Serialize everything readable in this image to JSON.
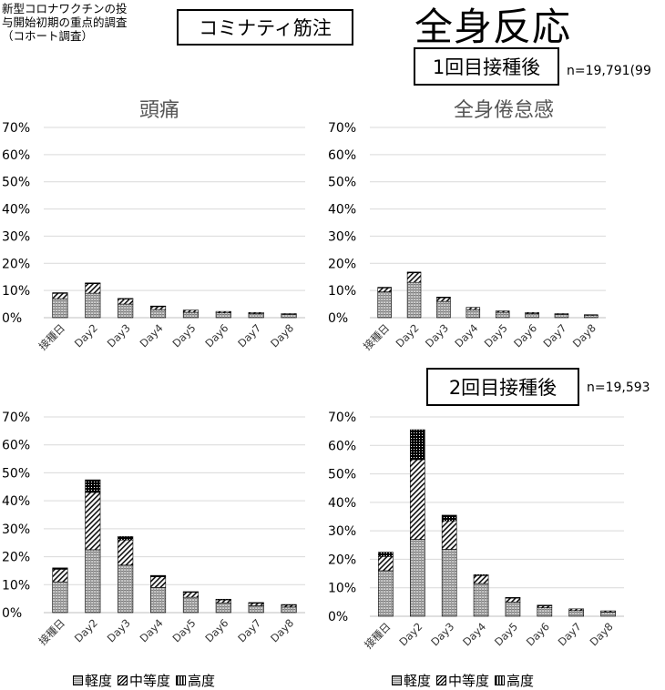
{
  "header": {
    "source_note": "新型コロナワクチンの投\n与開始初期の重点的調査\n（コホート調査）",
    "community_label": "コミナティ筋注",
    "main_title": "全身反応",
    "dose1_label": "1回目接種後",
    "dose1_n": "n=19,791(99",
    "dose2_label": "2回目接種後",
    "dose2_n": "n=19,593"
  },
  "legend": {
    "light": "軽度",
    "moderate": "中等度",
    "severe": "高度"
  },
  "colors": {
    "light": "#8c8c8c",
    "moderate": "#000000",
    "severe": "#000000",
    "grid": "#d9d9d9",
    "text": "#333333"
  },
  "chart_data": [
    {
      "type": "bar",
      "stacked": true,
      "title": "頭痛",
      "dose": "1回目接種後",
      "categories": [
        "接種日",
        "Day2",
        "Day3",
        "Day4",
        "Day5",
        "Day6",
        "Day7",
        "Day8"
      ],
      "series": [
        {
          "name": "軽度",
          "values": [
            7.0,
            9.0,
            5.0,
            3.0,
            2.0,
            1.8,
            1.5,
            1.2
          ]
        },
        {
          "name": "中等度",
          "values": [
            2.0,
            3.5,
            2.0,
            1.2,
            0.8,
            0.5,
            0.4,
            0.3
          ]
        },
        {
          "name": "高度",
          "values": [
            0.2,
            0.3,
            0.1,
            0.1,
            0.0,
            0.0,
            0.0,
            0.0
          ]
        }
      ],
      "yticks": [
        "0%",
        "10%",
        "20%",
        "30%",
        "40%",
        "50%",
        "60%",
        "70%"
      ],
      "ylim": [
        0,
        70
      ],
      "grid": true
    },
    {
      "type": "bar",
      "stacked": true,
      "title": "全身倦怠感",
      "dose": "1回目接種後",
      "categories": [
        "接種日",
        "Day2",
        "Day3",
        "Day4",
        "Day5",
        "Day6",
        "Day7",
        "Day8"
      ],
      "series": [
        {
          "name": "軽度",
          "values": [
            9.5,
            13.0,
            6.0,
            3.0,
            2.0,
            1.5,
            1.2,
            0.9
          ]
        },
        {
          "name": "中等度",
          "values": [
            1.5,
            3.5,
            1.5,
            0.8,
            0.5,
            0.4,
            0.3,
            0.2
          ]
        },
        {
          "name": "高度",
          "values": [
            0.2,
            0.3,
            0.1,
            0.0,
            0.0,
            0.0,
            0.0,
            0.0
          ]
        }
      ],
      "yticks": [
        "0%",
        "10%",
        "20%",
        "30%",
        "40%",
        "50%",
        "60%",
        "70%"
      ],
      "ylim": [
        0,
        70
      ],
      "grid": true
    },
    {
      "type": "bar",
      "stacked": true,
      "title": "",
      "dose": "2回目接種後",
      "categories": [
        "接種日",
        "Day2",
        "Day3",
        "Day4",
        "Day5",
        "Day6",
        "Day7",
        "Day8"
      ],
      "series": [
        {
          "name": "軽度",
          "values": [
            11.0,
            22.5,
            17.0,
            9.0,
            5.5,
            3.5,
            2.5,
            2.0
          ]
        },
        {
          "name": "中等度",
          "values": [
            4.5,
            20.5,
            9.0,
            3.8,
            1.8,
            1.2,
            1.0,
            0.8
          ]
        },
        {
          "name": "高度",
          "values": [
            0.5,
            4.5,
            1.2,
            0.5,
            0.2,
            0.1,
            0.1,
            0.1
          ]
        }
      ],
      "yticks": [
        "0%",
        "10%",
        "20%",
        "30%",
        "40%",
        "50%",
        "60%",
        "70%"
      ],
      "ylim": [
        0,
        70
      ],
      "grid": true
    },
    {
      "type": "bar",
      "stacked": true,
      "title": "",
      "dose": "2回目接種後",
      "categories": [
        "接種日",
        "Day2",
        "Day3",
        "Day4",
        "Day5",
        "Day6",
        "Day7",
        "Day8"
      ],
      "series": [
        {
          "name": "軽度",
          "values": [
            16.0,
            27.0,
            23.5,
            11.5,
            5.0,
            3.0,
            2.0,
            1.5
          ]
        },
        {
          "name": "中等度",
          "values": [
            5.0,
            28.0,
            10.0,
            2.8,
            1.5,
            0.8,
            0.6,
            0.4
          ]
        },
        {
          "name": "高度",
          "values": [
            1.5,
            10.5,
            2.0,
            0.3,
            0.1,
            0.1,
            0.0,
            0.0
          ]
        }
      ],
      "yticks": [
        "0%",
        "10%",
        "20%",
        "30%",
        "40%",
        "50%",
        "60%",
        "70%"
      ],
      "ylim": [
        0,
        70
      ],
      "grid": true
    }
  ]
}
